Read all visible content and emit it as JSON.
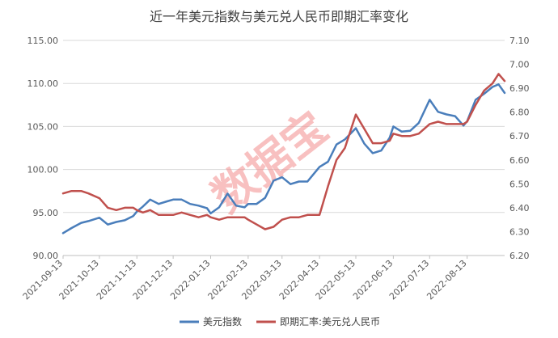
{
  "chart_data": {
    "type": "line",
    "title": "近一年美元指数与美元兑人民币即期汇率变化",
    "watermark": "数据宝",
    "x_tick_labels": [
      "2021-09-13",
      "2021-10-13",
      "2021-11-13",
      "2021-12-13",
      "2022-01-13",
      "2022-02-13",
      "2022-03-13",
      "2022-04-13",
      "2022-05-13",
      "2022-06-13",
      "2022-07-13",
      "2022-08-13"
    ],
    "x_range": [
      "2021-09-13",
      "2022-09-13"
    ],
    "y_left": {
      "ticks": [
        "90.00",
        "95.00",
        "100.00",
        "105.00",
        "110.00",
        "115.00"
      ],
      "range": [
        90,
        115
      ]
    },
    "y_right": {
      "ticks": [
        "6.20",
        "6.30",
        "6.40",
        "6.50",
        "6.60",
        "6.70",
        "6.80",
        "6.90",
        "7.00",
        "7.10"
      ],
      "range": [
        6.2,
        7.1
      ]
    },
    "grid": true,
    "legend_position": "bottom",
    "series": [
      {
        "name": "美元指数",
        "axis": "left",
        "color": "#4a7ebb",
        "points": [
          [
            "2021-09-13",
            92.6
          ],
          [
            "2021-09-20",
            93.2
          ],
          [
            "2021-09-28",
            93.8
          ],
          [
            "2021-10-04",
            94.0
          ],
          [
            "2021-10-13",
            94.4
          ],
          [
            "2021-10-20",
            93.6
          ],
          [
            "2021-10-27",
            93.9
          ],
          [
            "2021-11-03",
            94.1
          ],
          [
            "2021-11-10",
            94.6
          ],
          [
            "2021-11-13",
            95.1
          ],
          [
            "2021-11-18",
            95.7
          ],
          [
            "2021-11-24",
            96.5
          ],
          [
            "2021-12-01",
            96.0
          ],
          [
            "2021-12-08",
            96.3
          ],
          [
            "2021-12-13",
            96.5
          ],
          [
            "2021-12-20",
            96.5
          ],
          [
            "2021-12-27",
            96.0
          ],
          [
            "2022-01-03",
            95.8
          ],
          [
            "2022-01-10",
            95.5
          ],
          [
            "2022-01-13",
            94.9
          ],
          [
            "2022-01-20",
            95.6
          ],
          [
            "2022-01-27",
            97.2
          ],
          [
            "2022-02-03",
            95.8
          ],
          [
            "2022-02-10",
            95.6
          ],
          [
            "2022-02-13",
            96.0
          ],
          [
            "2022-02-20",
            96.0
          ],
          [
            "2022-02-27",
            96.7
          ],
          [
            "2022-03-06",
            98.7
          ],
          [
            "2022-03-13",
            99.1
          ],
          [
            "2022-03-20",
            98.3
          ],
          [
            "2022-03-27",
            98.6
          ],
          [
            "2022-04-03",
            98.6
          ],
          [
            "2022-04-13",
            100.3
          ],
          [
            "2022-04-20",
            100.9
          ],
          [
            "2022-04-27",
            102.9
          ],
          [
            "2022-05-04",
            103.5
          ],
          [
            "2022-05-13",
            104.8
          ],
          [
            "2022-05-20",
            103.0
          ],
          [
            "2022-05-27",
            101.9
          ],
          [
            "2022-06-03",
            102.2
          ],
          [
            "2022-06-10",
            103.7
          ],
          [
            "2022-06-13",
            105.0
          ],
          [
            "2022-06-20",
            104.4
          ],
          [
            "2022-06-27",
            104.5
          ],
          [
            "2022-07-04",
            105.4
          ],
          [
            "2022-07-13",
            108.1
          ],
          [
            "2022-07-20",
            106.7
          ],
          [
            "2022-07-27",
            106.4
          ],
          [
            "2022-08-03",
            106.2
          ],
          [
            "2022-08-10",
            105.1
          ],
          [
            "2022-08-13",
            105.6
          ],
          [
            "2022-08-20",
            108.1
          ],
          [
            "2022-08-27",
            108.8
          ],
          [
            "2022-09-03",
            109.6
          ],
          [
            "2022-09-08",
            109.9
          ],
          [
            "2022-09-13",
            108.9
          ]
        ]
      },
      {
        "name": "即期汇率:美元兑人民币",
        "axis": "right",
        "color": "#c0504d",
        "points": [
          [
            "2021-09-13",
            6.46
          ],
          [
            "2021-09-20",
            6.47
          ],
          [
            "2021-09-28",
            6.47
          ],
          [
            "2021-10-04",
            6.46
          ],
          [
            "2021-10-13",
            6.44
          ],
          [
            "2021-10-20",
            6.4
          ],
          [
            "2021-10-27",
            6.39
          ],
          [
            "2021-11-03",
            6.4
          ],
          [
            "2021-11-10",
            6.4
          ],
          [
            "2021-11-13",
            6.39
          ],
          [
            "2021-11-18",
            6.38
          ],
          [
            "2021-11-24",
            6.39
          ],
          [
            "2021-12-01",
            6.37
          ],
          [
            "2021-12-08",
            6.37
          ],
          [
            "2021-12-13",
            6.37
          ],
          [
            "2021-12-20",
            6.38
          ],
          [
            "2021-12-27",
            6.37
          ],
          [
            "2022-01-03",
            6.36
          ],
          [
            "2022-01-10",
            6.37
          ],
          [
            "2022-01-13",
            6.36
          ],
          [
            "2022-01-20",
            6.35
          ],
          [
            "2022-01-27",
            6.36
          ],
          [
            "2022-02-03",
            6.36
          ],
          [
            "2022-02-10",
            6.36
          ],
          [
            "2022-02-13",
            6.35
          ],
          [
            "2022-02-20",
            6.33
          ],
          [
            "2022-02-27",
            6.31
          ],
          [
            "2022-03-06",
            6.32
          ],
          [
            "2022-03-13",
            6.35
          ],
          [
            "2022-03-20",
            6.36
          ],
          [
            "2022-03-27",
            6.36
          ],
          [
            "2022-04-03",
            6.37
          ],
          [
            "2022-04-13",
            6.37
          ],
          [
            "2022-04-20",
            6.49
          ],
          [
            "2022-04-27",
            6.6
          ],
          [
            "2022-05-04",
            6.65
          ],
          [
            "2022-05-13",
            6.79
          ],
          [
            "2022-05-20",
            6.73
          ],
          [
            "2022-05-27",
            6.67
          ],
          [
            "2022-06-03",
            6.67
          ],
          [
            "2022-06-10",
            6.68
          ],
          [
            "2022-06-13",
            6.71
          ],
          [
            "2022-06-20",
            6.7
          ],
          [
            "2022-06-27",
            6.7
          ],
          [
            "2022-07-04",
            6.71
          ],
          [
            "2022-07-13",
            6.75
          ],
          [
            "2022-07-20",
            6.76
          ],
          [
            "2022-07-27",
            6.75
          ],
          [
            "2022-08-03",
            6.75
          ],
          [
            "2022-08-10",
            6.75
          ],
          [
            "2022-08-13",
            6.76
          ],
          [
            "2022-08-20",
            6.83
          ],
          [
            "2022-08-27",
            6.89
          ],
          [
            "2022-09-03",
            6.92
          ],
          [
            "2022-09-08",
            6.96
          ],
          [
            "2022-09-13",
            6.93
          ]
        ]
      }
    ]
  }
}
